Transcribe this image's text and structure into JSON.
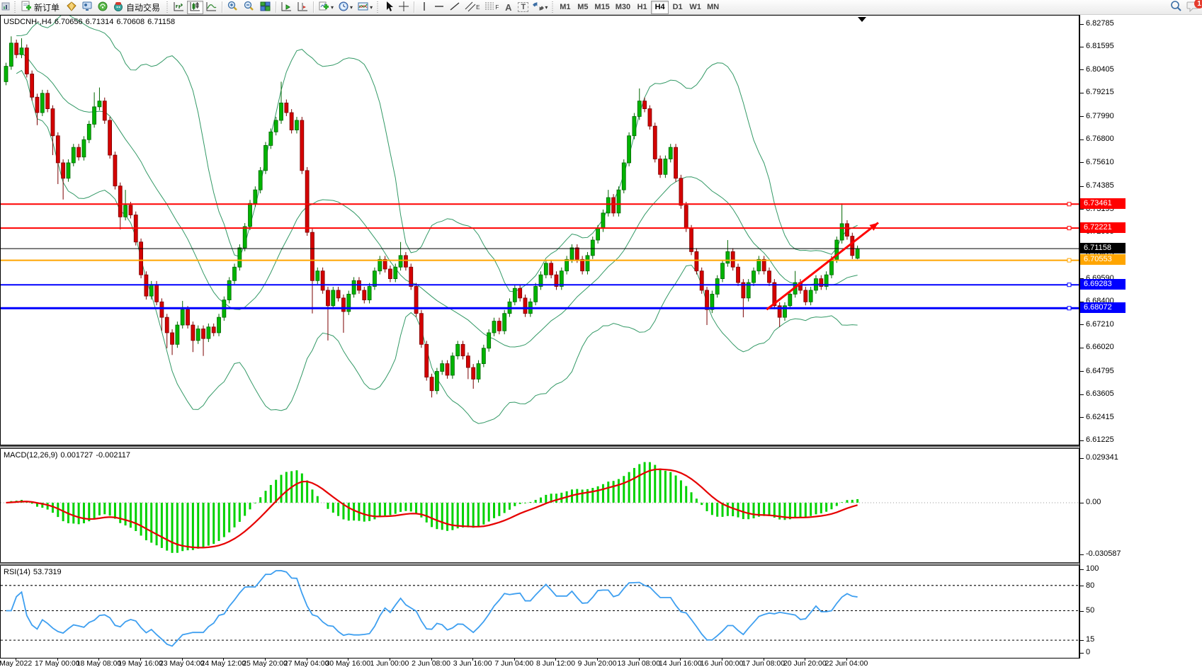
{
  "window": {
    "notification_count": "1"
  },
  "toolbar": {
    "new_order_label": "新订单",
    "auto_trading_label": "自动交易",
    "text_tool_label": "A",
    "label_tool_label": "T",
    "channel_tool_label": "E",
    "fibo_tool_label": "F",
    "timeframes": [
      "M1",
      "M5",
      "M15",
      "M30",
      "H1",
      "H4",
      "D1",
      "W1",
      "MN"
    ],
    "active_timeframe": "H4"
  },
  "chart": {
    "symbol_label": "USDCNH-,H4",
    "open": "6.70656",
    "high": "6.71314",
    "low": "6.70608",
    "close": "6.71158",
    "y_axis_labels": [
      "6.82785",
      "6.81595",
      "6.80405",
      "6.79215",
      "6.77990",
      "6.76800",
      "6.75610",
      "6.74385",
      "6.73195",
      "6.72005",
      "6.70815",
      "6.69590",
      "6.68400",
      "6.67210",
      "6.66020",
      "6.64795",
      "6.63605",
      "6.62415",
      "6.61225"
    ],
    "price_lines": [
      {
        "value": "6.73461",
        "color": "#ff0000",
        "width": 2
      },
      {
        "value": "6.72221",
        "color": "#ff0000",
        "width": 2
      },
      {
        "value": "6.71158",
        "color": "#000000",
        "width": 1
      },
      {
        "value": "6.70553",
        "color": "#ffa500",
        "width": 2
      },
      {
        "value": "6.69283",
        "color": "#0000ff",
        "width": 2
      },
      {
        "value": "6.68072",
        "color": "#0000ff",
        "width": 3
      }
    ],
    "trend_arrow": {
      "color": "#ff0000",
      "from_bar": 146.5,
      "from_price": 6.68,
      "to_bar": 168,
      "to_price": 6.725
    }
  },
  "macd": {
    "label": "MACD(12,26,9)",
    "value_main": "0.001727",
    "value_signal": "-0.002117",
    "axis_labels": [
      "0.029341",
      "0.00",
      "-0.030587"
    ],
    "histogram_color": "#00d200",
    "signal_color": "#e60000"
  },
  "rsi": {
    "label": "RSI(14)",
    "value": "53.7319",
    "axis_labels": [
      "100",
      "80",
      "50",
      "15",
      "0"
    ],
    "levels": [
      80,
      50,
      15
    ],
    "line_color": "#3e9ff0"
  },
  "time_axis": {
    "labels": [
      "May 2022",
      "17 May 00:00",
      "18 May 08:00",
      "19 May 16:00",
      "23 May 04:00",
      "24 May 12:00",
      "25 May 20:00",
      "27 May 04:00",
      "30 May 16:00",
      "1 Jun 00:00",
      "2 Jun 08:00",
      "3 Jun 16:00",
      "7 Jun 04:00",
      "8 Jun 12:00",
      "9 Jun 20:00",
      "13 Jun 08:00",
      "14 Jun 16:00",
      "16 Jun 00:00",
      "17 Jun 08:00",
      "20 Jun 20:00",
      "22 Jun 04:00"
    ]
  },
  "chart_data": {
    "type": "candlestick",
    "symbol": "USDCNH",
    "period": "H4",
    "up_color": "#00b400",
    "up_border": "#006600",
    "down_color": "#d40000",
    "down_border": "#7a0000",
    "bollinger": {
      "period": 20,
      "deviation": 2,
      "color": "#339966"
    },
    "first_open": 6.798,
    "default_wick": 0.0018,
    "closes": [
      6.806,
      6.818,
      6.812,
      6.8155,
      6.802,
      6.79,
      6.782,
      6.792,
      6.784,
      6.77,
      6.756,
      6.748,
      6.756,
      6.764,
      6.759,
      6.768,
      6.776,
      6.785,
      6.788,
      6.778,
      6.76,
      6.744,
      6.728,
      6.734,
      6.729,
      6.715,
      6.698,
      6.687,
      6.693,
      6.684,
      6.676,
      6.668,
      6.662,
      6.672,
      6.68,
      6.672,
      6.664,
      6.67,
      6.665,
      6.671,
      6.668,
      6.676,
      6.685,
      6.695,
      6.702,
      6.712,
      6.723,
      6.735,
      6.742,
      6.752,
      6.765,
      6.772,
      6.778,
      6.787,
      6.782,
      6.773,
      6.778,
      6.752,
      6.72,
      6.695,
      6.7,
      6.69,
      6.682,
      6.69,
      6.686,
      6.679,
      6.688,
      6.695,
      6.69,
      6.685,
      6.692,
      6.7,
      6.706,
      6.701,
      6.696,
      6.702,
      6.708,
      6.702,
      6.692,
      6.678,
      6.662,
      6.645,
      6.638,
      6.648,
      6.652,
      6.646,
      6.656,
      6.662,
      6.656,
      6.65,
      6.644,
      6.652,
      6.66,
      6.668,
      6.674,
      6.669,
      6.678,
      6.684,
      6.691,
      6.686,
      6.678,
      6.684,
      6.692,
      6.698,
      6.704,
      6.698,
      6.692,
      6.7,
      6.706,
      6.712,
      6.706,
      6.7,
      6.708,
      6.716,
      6.722,
      6.73,
      6.738,
      6.73,
      6.742,
      6.756,
      6.77,
      6.78,
      6.788,
      6.784,
      6.775,
      6.758,
      6.75,
      6.758,
      6.764,
      6.748,
      6.734,
      6.722,
      6.71,
      6.7,
      6.69,
      6.68,
      6.688,
      6.696,
      6.704,
      6.71,
      6.702,
      6.694,
      6.686,
      6.694,
      6.7,
      6.706,
      6.7,
      6.694,
      6.682,
      6.676,
      6.682,
      6.688,
      6.694,
      6.69,
      6.684,
      6.69,
      6.696,
      6.692,
      6.698,
      6.706,
      6.716,
      6.7245,
      6.718,
      6.708,
      6.71158
    ],
    "wick_overrides": {
      "1": [
        6.8215,
        null
      ],
      "3": [
        6.8205,
        null
      ],
      "6": [
        null,
        6.7755
      ],
      "9": [
        null,
        6.76
      ],
      "10": [
        null,
        6.745
      ],
      "11": [
        null,
        6.737
      ],
      "17": [
        6.7925,
        null
      ],
      "18": [
        6.795,
        null
      ],
      "22": [
        null,
        6.7215
      ],
      "23": [
        6.742,
        null
      ],
      "30": [
        null,
        6.669
      ],
      "31": [
        null,
        6.66
      ],
      "32": [
        null,
        6.6565
      ],
      "34": [
        6.6845,
        null
      ],
      "36": [
        null,
        6.658
      ],
      "38": [
        null,
        6.656
      ],
      "53": [
        6.798,
        null
      ],
      "59": [
        null,
        6.678
      ],
      "62": [
        null,
        6.664
      ],
      "65": [
        null,
        6.668
      ],
      "76": [
        6.715,
        null
      ],
      "82": [
        null,
        6.6345
      ],
      "89": [
        null,
        6.644
      ],
      "90": [
        null,
        6.639
      ],
      "116": [
        6.742,
        null
      ],
      "122": [
        6.7945,
        null
      ],
      "135": [
        null,
        6.672
      ],
      "139": [
        6.716,
        null
      ],
      "142": [
        null,
        6.676
      ],
      "149": [
        null,
        6.671
      ],
      "152": [
        6.7,
        null
      ],
      "161": [
        6.735,
        null
      ],
      "164": [
        6.71314,
        6.70608
      ]
    },
    "open_overrides": {
      "164": 6.70656
    }
  }
}
